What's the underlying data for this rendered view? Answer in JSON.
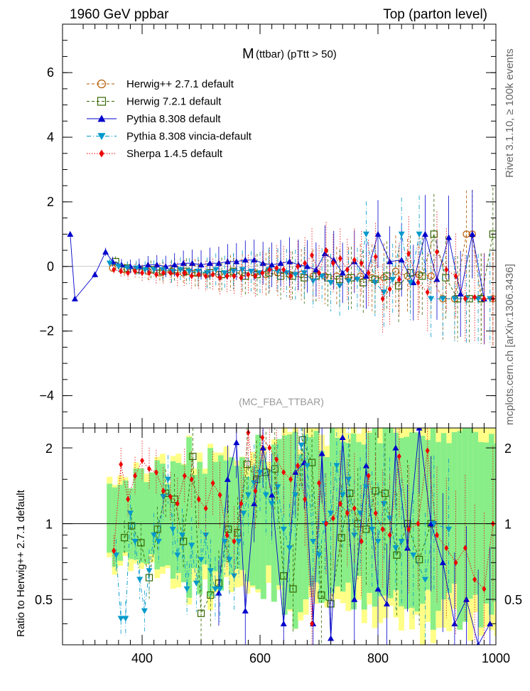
{
  "header": {
    "left": "1960 GeV ppbar",
    "right": "Top (parton level)"
  },
  "side_labels": {
    "rivet": "Rivet 3.1.10, ≥ 100k events",
    "source": "mcplots.cern.ch [arXiv:1306.3436]"
  },
  "chart_data": [
    {
      "type": "scatter",
      "title_main": "M",
      "title_sub": "(ttbar) (pTtt > 50)",
      "watermark": "(MC_FBA_TTBAR)",
      "xlim": [
        265,
        1000
      ],
      "ylim": [
        -5,
        7.5
      ],
      "yticks": [
        "6",
        "4",
        "2",
        "0",
        "−2",
        "−4"
      ],
      "ytick_values": [
        6,
        4,
        2,
        0,
        -2,
        -4
      ],
      "legend_position": "top-left",
      "series": [
        {
          "name": "Herwig++ 2.7.1 default",
          "color": "#b35900",
          "marker": "open-circle",
          "line": "dashed",
          "x": [
            350,
            370,
            390,
            410,
            430,
            450,
            470,
            490,
            510,
            530,
            550,
            570,
            590,
            610,
            630,
            650,
            670,
            690,
            710,
            730,
            750,
            770,
            790,
            810,
            830,
            850,
            870,
            890,
            910,
            930,
            950,
            960,
            975,
            995
          ],
          "y": [
            -0.05,
            -0.1,
            -0.1,
            -0.15,
            -0.2,
            -0.15,
            -0.2,
            -0.2,
            -0.25,
            -0.25,
            -0.2,
            -0.2,
            -0.2,
            -0.25,
            -0.2,
            -0.25,
            -0.25,
            -0.3,
            -0.3,
            -0.3,
            -0.35,
            -0.3,
            -0.35,
            -0.35,
            -0.15,
            -0.3,
            -0.25,
            -0.3,
            -1.0,
            -1.0,
            1.0,
            1.0,
            -1.0,
            -1.0
          ]
        },
        {
          "name": "Herwig 7.2.1 default",
          "color": "#336600",
          "marker": "open-square",
          "line": "dashed",
          "x": [
            355,
            375,
            395,
            415,
            435,
            455,
            475,
            495,
            515,
            535,
            555,
            575,
            595,
            615,
            635,
            655,
            675,
            695,
            715,
            735,
            755,
            775,
            795,
            815,
            835,
            855,
            875,
            895,
            915,
            935,
            955,
            975,
            995
          ],
          "y": [
            0.15,
            -0.05,
            -0.1,
            -0.1,
            -0.15,
            -0.1,
            -0.15,
            -0.2,
            -0.2,
            -0.25,
            -0.15,
            -0.3,
            -0.25,
            -0.2,
            -0.3,
            -0.3,
            -0.35,
            -0.3,
            -0.35,
            -0.4,
            -0.35,
            -0.5,
            -0.4,
            -0.3,
            -0.6,
            -0.2,
            -0.3,
            1.0,
            -0.35,
            -1.0,
            -1.0,
            -1.0,
            1.0
          ]
        },
        {
          "name": "Pythia 8.308 default",
          "color": "#0000cc",
          "marker": "filled-triangle-up",
          "line": "solid",
          "x": [
            278,
            286,
            320,
            338,
            350,
            365,
            380,
            395,
            410,
            425,
            440,
            455,
            470,
            485,
            500,
            515,
            530,
            545,
            560,
            575,
            590,
            605,
            620,
            635,
            650,
            665,
            680,
            695,
            710,
            725,
            740,
            760,
            780,
            800,
            820,
            840,
            860,
            880,
            900,
            920,
            940,
            960,
            980
          ],
          "y": [
            1.0,
            -1.0,
            -0.25,
            0.45,
            0.15,
            0.05,
            0.0,
            0.0,
            0.05,
            0.05,
            0.0,
            0.05,
            0.1,
            0.1,
            0.05,
            0.1,
            0.1,
            0.15,
            0.15,
            0.2,
            0.2,
            0.1,
            0.05,
            0.1,
            0.15,
            0.05,
            0.0,
            -0.1,
            0.4,
            0.2,
            -0.2,
            0.15,
            -0.3,
            1.0,
            0.15,
            0.2,
            -0.5,
            1.0,
            -0.4,
            0.9,
            -0.85,
            1.0,
            -1.0
          ]
        },
        {
          "name": "Pythia 8.308 vincia-default",
          "color": "#0099cc",
          "marker": "filled-triangle-down",
          "line": "dashdot",
          "x": [
            345,
            360,
            375,
            390,
            405,
            420,
            435,
            450,
            465,
            480,
            495,
            510,
            525,
            540,
            555,
            570,
            585,
            600,
            615,
            630,
            645,
            660,
            675,
            690,
            705,
            720,
            735,
            750,
            765,
            780,
            795,
            810,
            825,
            840,
            855,
            870,
            890,
            910,
            930,
            950,
            970,
            990
          ],
          "y": [
            0.1,
            0.0,
            -0.05,
            -0.05,
            -0.1,
            -0.1,
            -0.1,
            -0.15,
            -0.1,
            -0.15,
            -0.15,
            -0.2,
            -0.1,
            -0.2,
            -0.15,
            -0.1,
            -0.15,
            -0.2,
            -0.1,
            -0.15,
            -0.2,
            -0.25,
            -0.2,
            -0.45,
            -0.3,
            -0.5,
            -0.6,
            -0.45,
            -0.4,
            1.0,
            -0.5,
            -0.8,
            -0.4,
            1.0,
            -0.5,
            1.0,
            -1.0,
            -1.0,
            -1.0,
            -1.0,
            -1.0,
            -1.0
          ]
        },
        {
          "name": "Sherpa 1.4.5 default",
          "color": "#ee0000",
          "marker": "filled-diamond",
          "line": "dotted",
          "x": [
            352,
            364,
            376,
            388,
            400,
            412,
            424,
            436,
            448,
            460,
            472,
            484,
            496,
            508,
            520,
            532,
            544,
            556,
            568,
            580,
            592,
            604,
            616,
            628,
            640,
            652,
            664,
            676,
            688,
            700,
            712,
            724,
            736,
            748,
            760,
            772,
            784,
            796,
            808,
            820,
            836,
            852,
            868,
            884,
            900,
            916,
            932,
            948,
            964,
            980,
            995
          ],
          "y": [
            -0.1,
            -0.15,
            -0.2,
            -0.15,
            -0.2,
            -0.2,
            -0.25,
            -0.2,
            -0.2,
            -0.25,
            -0.2,
            -0.3,
            -0.25,
            -0.3,
            -0.25,
            -0.35,
            -0.3,
            -0.3,
            -0.35,
            -0.25,
            -0.3,
            -0.2,
            -0.1,
            -0.05,
            -0.1,
            -0.3,
            0.0,
            0.1,
            0.35,
            -0.2,
            0.5,
            0.1,
            0.25,
            -0.1,
            0.2,
            0.1,
            -0.2,
            0.3,
            -1.0,
            -0.7,
            -0.4,
            0.4,
            -0.5,
            -0.8,
            0.45,
            -0.1,
            -0.3,
            -1.0,
            -0.95,
            -1.0,
            -1.0
          ]
        }
      ]
    },
    {
      "type": "scatter",
      "ylabel": "Ratio to Herwig++ 2.7.1 default",
      "xlim": [
        265,
        1000
      ],
      "ylim": [
        0.33,
        2.4
      ],
      "xticks": [
        "400",
        "600",
        "800",
        "1000"
      ],
      "xtick_values": [
        400,
        600,
        800,
        1000
      ],
      "yticks_left": [
        "2",
        "1",
        "0.5"
      ],
      "yticks_right": [
        "2",
        "1",
        "0.5"
      ],
      "ytick_values": [
        2,
        1,
        0.5
      ],
      "series": [
        {
          "name": "Herwig 7.2.1 default",
          "color": "#336600",
          "marker": "open-square",
          "x": [
            370,
            382,
            398,
            412,
            426,
            440,
            455,
            470,
            486,
            500,
            516,
            530,
            546,
            562,
            578,
            594,
            610,
            625,
            640,
            656,
            672,
            688,
            704,
            720,
            738,
            752,
            766,
            780,
            796,
            812,
            832,
            850,
            870,
            890
          ],
          "y": [
            0.88,
            0.98,
            0.84,
            0.61,
            0.95,
            1.32,
            1.25,
            0.85,
            1.85,
            0.44,
            0.52,
            0.58,
            0.95,
            0.92,
            1.72,
            1.5,
            1.6,
            1.65,
            0.62,
            0.55,
            2.15,
            1.75,
            0.52,
            0.48,
            0.88,
            1.32,
            1.0,
            0.95,
            1.35,
            1.32,
            0.75,
            1.0,
            0.72,
            1.0
          ]
        },
        {
          "name": "Pythia 8.308 default",
          "color": "#0000cc",
          "marker": "filled-triangle-up",
          "x": [
            530,
            545,
            560,
            575,
            590,
            605,
            620,
            640,
            660,
            675,
            690,
            705,
            720,
            740,
            760,
            780,
            800,
            815,
            830,
            850,
            870,
            890,
            910,
            930,
            950,
            970,
            990
          ],
          "y": [
            0.53,
            1.5,
            2.1,
            0.45,
            1.2,
            2.0,
            1.3,
            0.4,
            1.6,
            1.75,
            0.4,
            1.9,
            0.35,
            2.2,
            0.5,
            1.7,
            0.55,
            0.48,
            2.0,
            0.8,
            2.5,
            1.0,
            0.7,
            0.4,
            0.5,
            0.3,
            0.4
          ]
        },
        {
          "name": "Pythia 8.308 vincia-default",
          "color": "#0099cc",
          "marker": "filled-triangle-down",
          "x": [
            356,
            364,
            372,
            380,
            388,
            396,
            404,
            412,
            420,
            428,
            436,
            444,
            452,
            460,
            468,
            476,
            484,
            492,
            500,
            508,
            516,
            524,
            532,
            540,
            548,
            556,
            564,
            572,
            580,
            590,
            600,
            610,
            620,
            630,
            640,
            650,
            660,
            670,
            680,
            690,
            700,
            710,
            720,
            730,
            740,
            750,
            760,
            770,
            780,
            790,
            800,
            810,
            820,
            830,
            840,
            860,
            880,
            895,
            920
          ],
          "y": [
            0.75,
            0.42,
            0.42,
            1.1,
            0.85,
            0.6,
            0.45,
            0.65,
            0.9,
            0.85,
            1.28,
            1.5,
            0.95,
            0.75,
            0.9,
            0.55,
            0.82,
            0.58,
            0.72,
            0.9,
            0.65,
            0.55,
            0.55,
            0.85,
            0.72,
            0.62,
            0.85,
            1.1,
            1.3,
            1.45,
            1.6,
            1.3,
            1.2,
            1.4,
            0.95,
            0.8,
            1.3,
            2.05,
            1.7,
            0.85,
            0.75,
            1.0,
            1.1,
            1.7,
            1.3,
            1.5,
            0.9,
            1.1,
            1.4,
            0.95,
            0.85,
            1.2,
            1.05,
            0.8,
            0.85,
            0.75,
            0.6,
            1.0,
            0.95
          ]
        },
        {
          "name": "Sherpa 1.4.5 default",
          "color": "#ee0000",
          "marker": "filled-diamond",
          "x": [
            352,
            364,
            376,
            388,
            400,
            412,
            424,
            436,
            448,
            460,
            472,
            484,
            496,
            508,
            520,
            532,
            544,
            556,
            568,
            580,
            592,
            604,
            616,
            628,
            640,
            652,
            664,
            676,
            688,
            700,
            712,
            724,
            736,
            748,
            760,
            772,
            784,
            796,
            808,
            820,
            836,
            852,
            868,
            884,
            900,
            916,
            932,
            948,
            964,
            980,
            995
          ],
          "y": [
            0.78,
            1.72,
            1.25,
            1.55,
            1.78,
            1.65,
            1.6,
            1.35,
            1.28,
            1.2,
            1.55,
            1.5,
            1.25,
            1.15,
            1.45,
            1.3,
            0.9,
            0.85,
            1.2,
            2.3,
            1.35,
            2.2,
            2.0,
            1.8,
            1.6,
            1.5,
            1.7,
            1.25,
            0.4,
            1.45,
            1.0,
            1.05,
            1.2,
            1.1,
            1.15,
            0.85,
            1.55,
            1.1,
            0.95,
            0.9,
            1.85,
            0.95,
            1.0,
            1.95,
            0.9,
            0.8,
            0.7,
            0.8,
            0.6,
            0.55,
            1.0
          ]
        }
      ]
    }
  ]
}
